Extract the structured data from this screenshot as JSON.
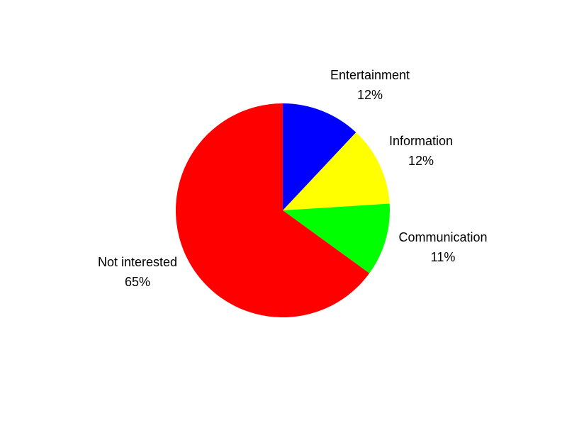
{
  "chart_data": {
    "type": "pie",
    "title": "",
    "start_angle_deg": 0,
    "direction": "clockwise",
    "slices": [
      {
        "label": "Entertainment",
        "value": 12,
        "value_label": "12%",
        "color": "#0000FF"
      },
      {
        "label": "Information",
        "value": 12,
        "value_label": "12%",
        "color": "#FFFF00"
      },
      {
        "label": "Communication",
        "value": 11,
        "value_label": "11%",
        "color": "#00FF00"
      },
      {
        "label": "Not interested",
        "value": 65,
        "value_label": "65%",
        "color": "#FF0000"
      }
    ],
    "legend": "none"
  }
}
